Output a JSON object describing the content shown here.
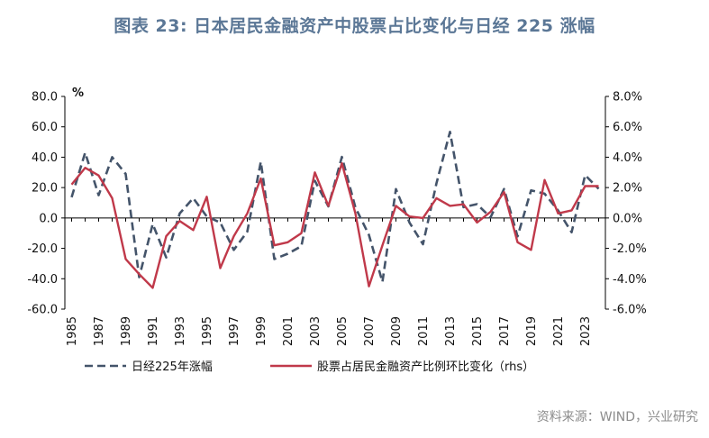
{
  "title": "图表 23: 日本居民金融资产中股票占比变化与日经 225 涨幅",
  "source": "资料来源：WIND，兴业研究",
  "chart_data": {
    "type": "line",
    "left_unit": "%",
    "left_ylim": [
      -60,
      80
    ],
    "left_ticks": [
      "80.0",
      "60.0",
      "40.0",
      "20.0",
      "0.0",
      "-20.0",
      "-40.0",
      "-60.0"
    ],
    "right_ylim": [
      -6,
      8
    ],
    "right_ticks": [
      "8.0%",
      "6.0%",
      "4.0%",
      "2.0%",
      "0.0%",
      "-2.0%",
      "-4.0%",
      "-6.0%"
    ],
    "x_tick_labels": [
      "1985",
      "1987",
      "1989",
      "1991",
      "1993",
      "1995",
      "1997",
      "1999",
      "2001",
      "2003",
      "2005",
      "2007",
      "2009",
      "2011",
      "2013",
      "2015",
      "2017",
      "2019",
      "2021",
      "2023"
    ],
    "x": [
      1985,
      1986,
      1987,
      1988,
      1989,
      1990,
      1991,
      1992,
      1993,
      1994,
      1995,
      1996,
      1997,
      1998,
      1999,
      2000,
      2001,
      2002,
      2003,
      2004,
      2005,
      2006,
      2007,
      2008,
      2009,
      2010,
      2011,
      2012,
      2013,
      2014,
      2015,
      2016,
      2017,
      2018,
      2019,
      2020,
      2021,
      2022,
      2023,
      2024
    ],
    "series": [
      {
        "name": "日经225年涨幅",
        "axis": "left",
        "style": "dashed",
        "color": "#44546a",
        "values": [
          13.6,
          43,
          15,
          40,
          29,
          -39,
          -4,
          -26,
          3,
          13,
          1,
          -3,
          -21,
          -9,
          37,
          -27,
          -23.5,
          -18.6,
          24.5,
          7.6,
          40.2,
          6.9,
          -11.1,
          -42.1,
          19,
          -3,
          -17.3,
          22.9,
          56.7,
          7.1,
          9.1,
          0.4,
          19.1,
          -12.1,
          18.2,
          16,
          4.9,
          -9.4,
          28.2,
          19.2
        ]
      },
      {
        "name": "股票占居民金融资产比例环比变化（rhs）",
        "axis": "right",
        "style": "solid",
        "color": "#c0394a",
        "values": [
          2.2,
          3.3,
          2.8,
          1.3,
          -2.7,
          -3.7,
          -4.6,
          -1.2,
          -0.2,
          -0.8,
          1.4,
          -3.3,
          -1.2,
          0.3,
          2.6,
          -1.8,
          -1.6,
          -1.0,
          3.0,
          0.8,
          3.6,
          0.3,
          -4.5,
          -1.8,
          0.8,
          0.1,
          0.0,
          1.3,
          0.8,
          0.9,
          -0.3,
          0.4,
          1.7,
          -1.6,
          -2.1,
          2.5,
          0.3,
          0.5,
          2.1,
          2.1
        ]
      }
    ],
    "legend_position": "bottom"
  }
}
